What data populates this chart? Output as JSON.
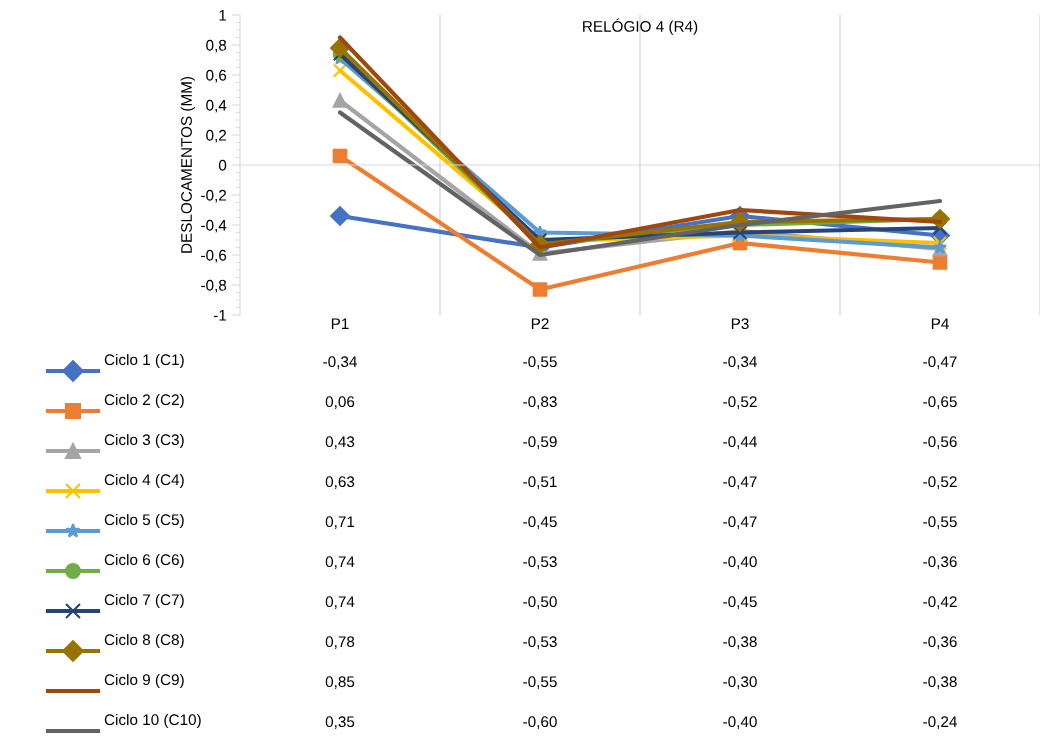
{
  "chart_data": {
    "type": "line",
    "title": "RELÓGIO 4 (R4)",
    "ylabel": "DESLOCAMENTOS (MM)",
    "categories": [
      "P1",
      "P2",
      "P3",
      "P4"
    ],
    "ylim": [
      -1,
      1
    ],
    "yticks": [
      -1,
      {
        "value": -0.8,
        "label": "-0,8"
      },
      {
        "value": -0.6,
        "label": "-0,6"
      },
      {
        "value": -0.4,
        "label": "-0,4"
      },
      {
        "value": -0.2,
        "label": "-0,2"
      },
      0,
      {
        "value": 0.2,
        "label": "0,2"
      },
      {
        "value": 0.4,
        "label": "0,4"
      },
      {
        "value": 0.6,
        "label": "0,6"
      },
      {
        "value": 0.8,
        "label": "0,8"
      },
      1
    ],
    "grid": "x",
    "legend": "bottom",
    "line_style": "solid",
    "series": [
      {
        "name": "Ciclo 1 (C1)",
        "color": "#4472c4",
        "marker": "diamond",
        "values": [
          -0.34,
          -0.55,
          -0.34,
          -0.47
        ],
        "value_labels": [
          "-0,34",
          "-0,55",
          "-0,34",
          "-0,47"
        ]
      },
      {
        "name": "Ciclo 2 (C2)",
        "color": "#ed7d31",
        "marker": "square",
        "values": [
          0.06,
          -0.83,
          -0.52,
          -0.65
        ],
        "value_labels": [
          "0,06",
          "-0,83",
          "-0,52",
          "-0,65"
        ]
      },
      {
        "name": "Ciclo 3 (C3)",
        "color": "#a5a5a5",
        "marker": "triangle",
        "values": [
          0.43,
          -0.59,
          -0.44,
          -0.56
        ],
        "value_labels": [
          "0,43",
          "-0,59",
          "-0,44",
          "-0,56"
        ]
      },
      {
        "name": "Ciclo 4 (C4)",
        "color": "#ffc000",
        "marker": "cross",
        "values": [
          0.63,
          -0.51,
          -0.47,
          -0.52
        ],
        "value_labels": [
          "0,63",
          "-0,51",
          "-0,47",
          "-0,52"
        ]
      },
      {
        "name": "Ciclo 5 (C5)",
        "color": "#5b9bd5",
        "marker": "star",
        "values": [
          0.71,
          -0.45,
          -0.47,
          -0.55
        ],
        "value_labels": [
          "0,71",
          "-0,45",
          "-0,47",
          "-0,55"
        ]
      },
      {
        "name": "Ciclo 6 (C6)",
        "color": "#70ad47",
        "marker": "circle",
        "values": [
          0.74,
          -0.53,
          -0.4,
          -0.36
        ],
        "value_labels": [
          "0,74",
          "-0,53",
          "-0,40",
          "-0,36"
        ]
      },
      {
        "name": "Ciclo 7 (C7)",
        "color": "#264478",
        "marker": "cross",
        "values": [
          0.74,
          -0.5,
          -0.45,
          -0.42
        ],
        "value_labels": [
          "0,74",
          "-0,50",
          "-0,45",
          "-0,42"
        ]
      },
      {
        "name": "Ciclo 8 (C8)",
        "color": "#997300",
        "marker": "diamond",
        "values": [
          0.78,
          -0.53,
          -0.38,
          -0.36
        ],
        "value_labels": [
          "0,78",
          "-0,53",
          "-0,38",
          "-0,36"
        ]
      },
      {
        "name": "Ciclo 9 (C9)",
        "color": "#9e480e",
        "marker": "none",
        "values": [
          0.85,
          -0.55,
          -0.3,
          -0.38
        ],
        "value_labels": [
          "0,85",
          "-0,55",
          "-0,30",
          "-0,38"
        ]
      },
      {
        "name": "Ciclo 10 (C10)",
        "color": "#636363",
        "marker": "none",
        "values": [
          0.35,
          -0.6,
          -0.4,
          -0.24
        ],
        "value_labels": [
          "0,35",
          "-0,60",
          "-0,40",
          "-0,24"
        ]
      }
    ]
  }
}
